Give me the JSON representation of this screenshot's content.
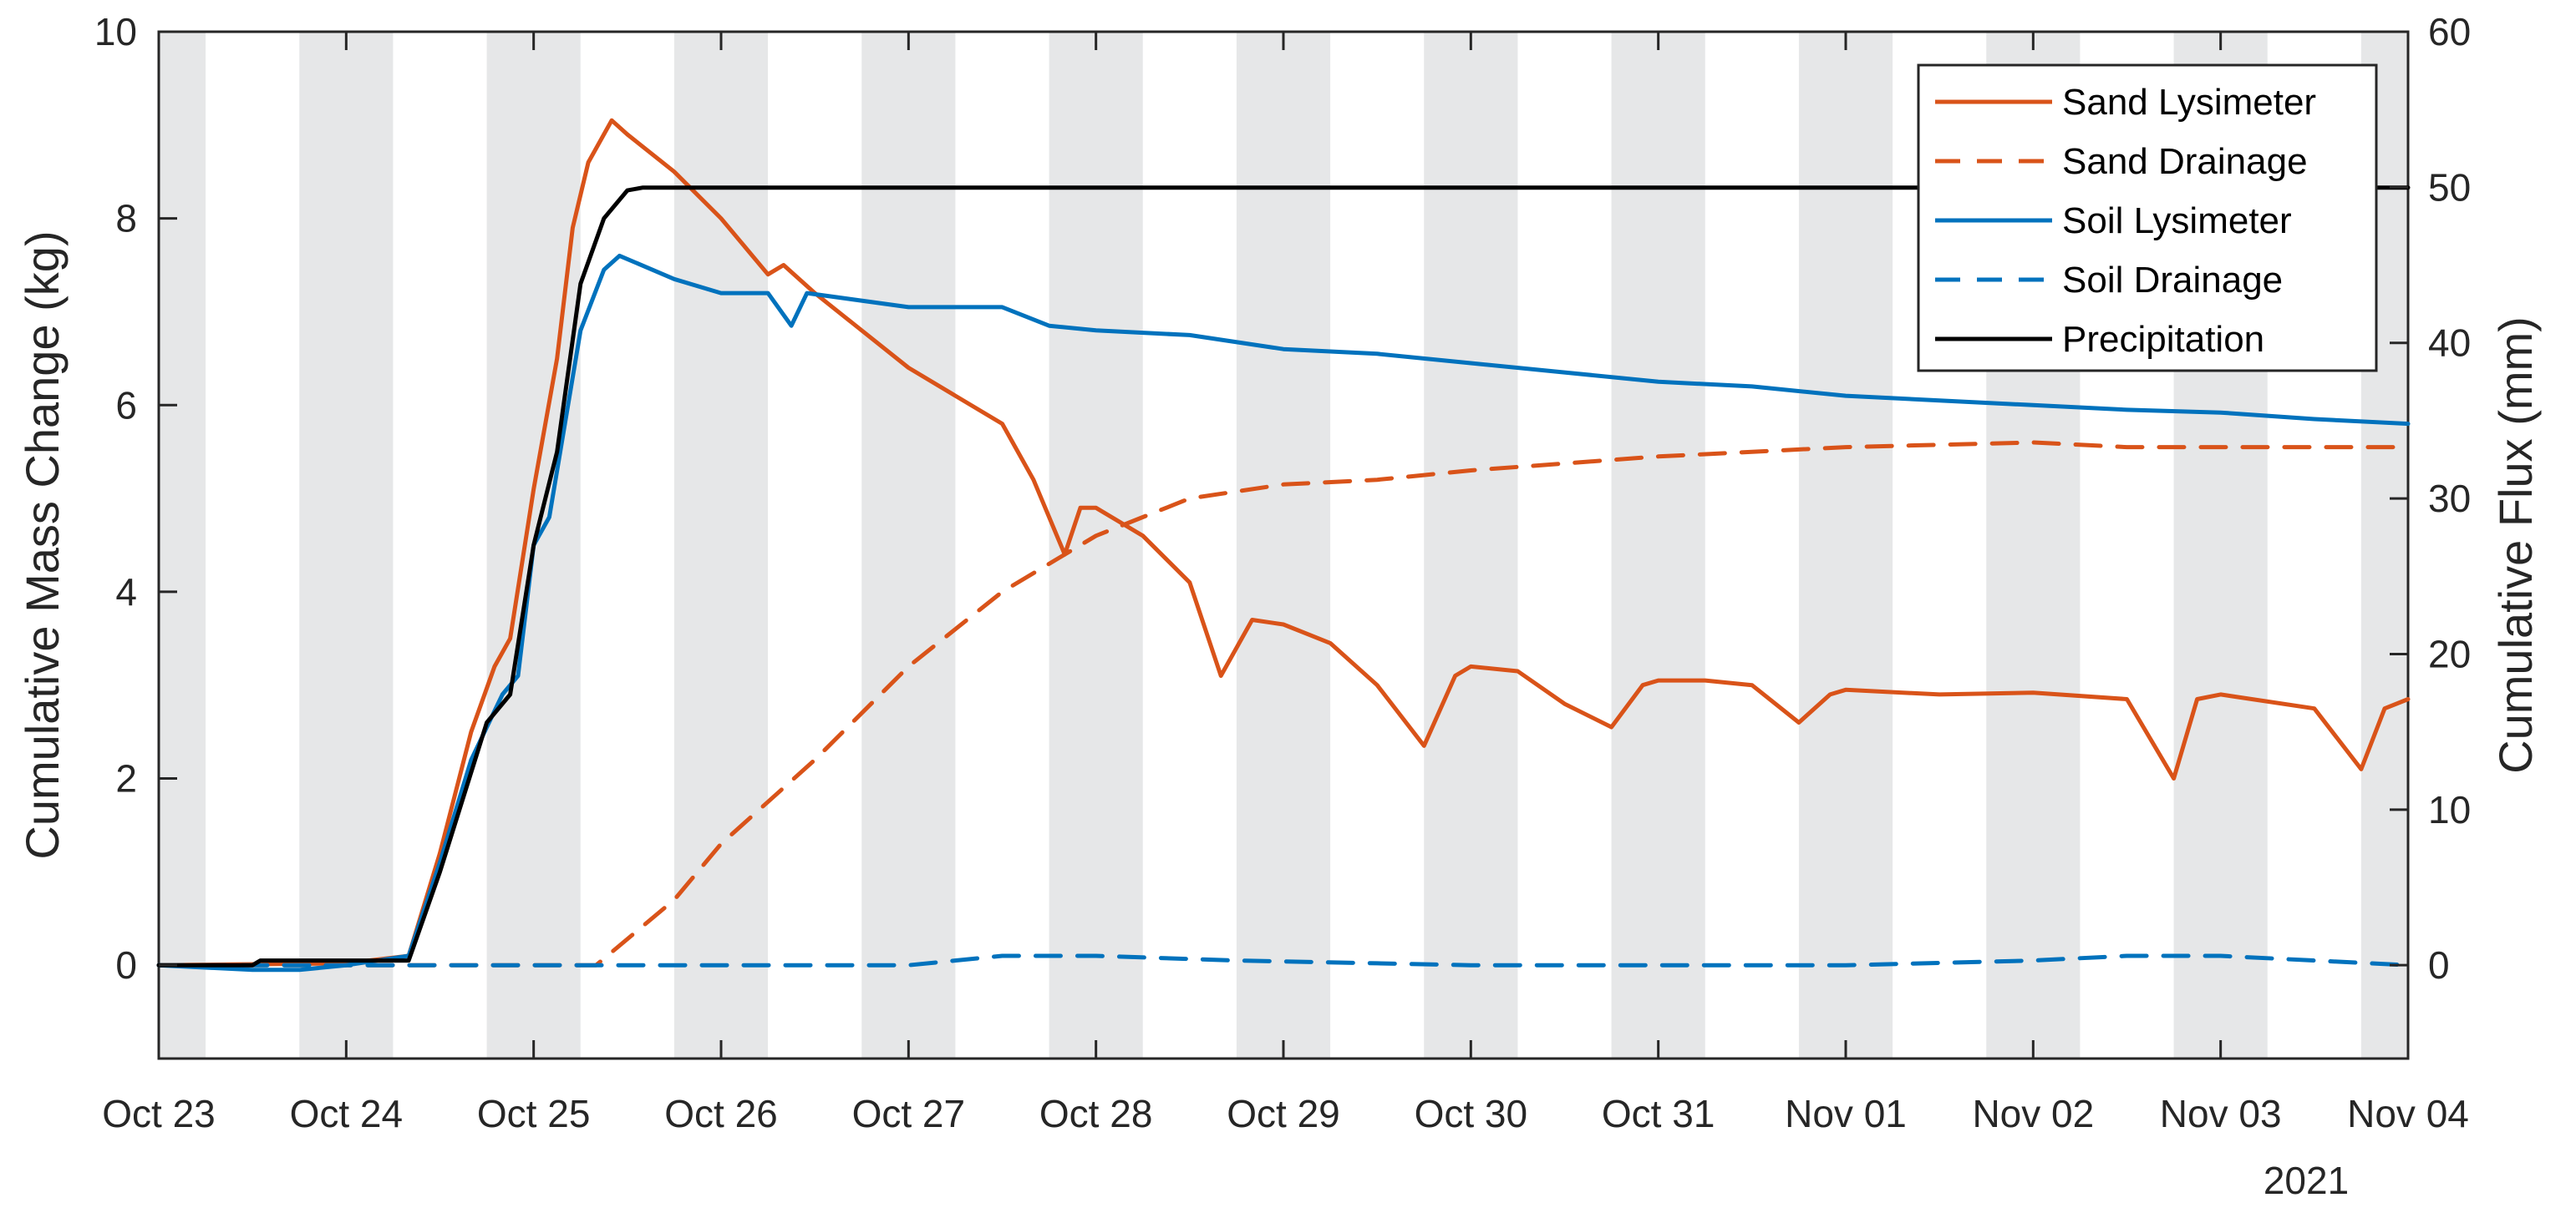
{
  "chart_data": {
    "type": "line",
    "title": "",
    "xlabel": "",
    "ylabel": "Cumulative Mass Change (kg)",
    "y2label": "Cumulative Flux (mm)",
    "x_ticks": [
      "Oct 23",
      "Oct 24",
      "Oct 25",
      "Oct 26",
      "Oct 27",
      "Oct 28",
      "Oct 29",
      "Oct 30",
      "Oct 31",
      "Nov 01",
      "Nov 02",
      "Nov 03",
      "Nov 04"
    ],
    "x_year_label": "2021",
    "xlim": [
      "2021-10-23",
      "2021-11-04"
    ],
    "ylim": [
      -1,
      10
    ],
    "yticks": [
      0,
      2,
      4,
      6,
      8,
      10
    ],
    "y2lim": [
      -6,
      60
    ],
    "y2ticks": [
      0,
      10,
      20,
      30,
      40,
      50,
      60
    ],
    "grid": false,
    "night_shading": true,
    "shading_color": "#e6e7e8",
    "legend_position": "top-right",
    "series": [
      {
        "name": "Sand Lysimeter",
        "axis": "left",
        "color": "#d95319",
        "dash": "solid",
        "points": [
          [
            "2021-10-23 00:00",
            0
          ],
          [
            "2021-10-24 00:00",
            0.02
          ],
          [
            "2021-10-24 08:00",
            0.1
          ],
          [
            "2021-10-24 12:00",
            1.2
          ],
          [
            "2021-10-24 16:00",
            2.5
          ],
          [
            "2021-10-24 19:00",
            3.2
          ],
          [
            "2021-10-24 21:00",
            3.5
          ],
          [
            "2021-10-25 00:00",
            5.1
          ],
          [
            "2021-10-25 03:00",
            6.5
          ],
          [
            "2021-10-25 05:00",
            7.9
          ],
          [
            "2021-10-25 07:00",
            8.6
          ],
          [
            "2021-10-25 10:00",
            9.05
          ],
          [
            "2021-10-25 12:00",
            8.9
          ],
          [
            "2021-10-25 18:00",
            8.5
          ],
          [
            "2021-10-26 00:00",
            8.0
          ],
          [
            "2021-10-26 06:00",
            7.4
          ],
          [
            "2021-10-26 08:00",
            7.5
          ],
          [
            "2021-10-26 12:00",
            7.2
          ],
          [
            "2021-10-26 18:00",
            6.8
          ],
          [
            "2021-10-27 00:00",
            6.4
          ],
          [
            "2021-10-27 06:00",
            6.1
          ],
          [
            "2021-10-27 12:00",
            5.8
          ],
          [
            "2021-10-27 16:00",
            5.2
          ],
          [
            "2021-10-27 20:00",
            4.4
          ],
          [
            "2021-10-27 22:00",
            4.9
          ],
          [
            "2021-10-28 00:00",
            4.9
          ],
          [
            "2021-10-28 06:00",
            4.6
          ],
          [
            "2021-10-28 12:00",
            4.1
          ],
          [
            "2021-10-28 16:00",
            3.1
          ],
          [
            "2021-10-28 20:00",
            3.7
          ],
          [
            "2021-10-29 00:00",
            3.65
          ],
          [
            "2021-10-29 06:00",
            3.45
          ],
          [
            "2021-10-29 12:00",
            3.0
          ],
          [
            "2021-10-29 18:00",
            2.35
          ],
          [
            "2021-10-29 22:00",
            3.1
          ],
          [
            "2021-10-30 00:00",
            3.2
          ],
          [
            "2021-10-30 06:00",
            3.15
          ],
          [
            "2021-10-30 12:00",
            2.8
          ],
          [
            "2021-10-30 18:00",
            2.55
          ],
          [
            "2021-10-30 22:00",
            3.0
          ],
          [
            "2021-10-31 00:00",
            3.05
          ],
          [
            "2021-10-31 06:00",
            3.05
          ],
          [
            "2021-10-31 12:00",
            3.0
          ],
          [
            "2021-10-31 18:00",
            2.6
          ],
          [
            "2021-10-31 22:00",
            2.9
          ],
          [
            "2021-11-01 00:00",
            2.95
          ],
          [
            "2021-11-01 12:00",
            2.9
          ],
          [
            "2021-11-02 00:00",
            2.92
          ],
          [
            "2021-11-02 12:00",
            2.85
          ],
          [
            "2021-11-02 18:00",
            2.0
          ],
          [
            "2021-11-02 21:00",
            2.85
          ],
          [
            "2021-11-03 00:00",
            2.9
          ],
          [
            "2021-11-03 12:00",
            2.75
          ],
          [
            "2021-11-03 18:00",
            2.1
          ],
          [
            "2021-11-03 21:00",
            2.75
          ],
          [
            "2021-11-04 00:00",
            2.85
          ]
        ]
      },
      {
        "name": "Sand Drainage",
        "axis": "left",
        "color": "#d95319",
        "dash": "dashed",
        "points": [
          [
            "2021-10-23 00:00",
            0
          ],
          [
            "2021-10-25 08:00",
            0
          ],
          [
            "2021-10-25 18:00",
            0.7
          ],
          [
            "2021-10-26 00:00",
            1.3
          ],
          [
            "2021-10-26 12:00",
            2.2
          ],
          [
            "2021-10-27 00:00",
            3.2
          ],
          [
            "2021-10-27 12:00",
            4.0
          ],
          [
            "2021-10-28 00:00",
            4.6
          ],
          [
            "2021-10-28 12:00",
            5.0
          ],
          [
            "2021-10-29 00:00",
            5.15
          ],
          [
            "2021-10-29 12:00",
            5.2
          ],
          [
            "2021-10-30 00:00",
            5.3
          ],
          [
            "2021-10-31 00:00",
            5.45
          ],
          [
            "2021-11-01 00:00",
            5.55
          ],
          [
            "2021-11-02 00:00",
            5.6
          ],
          [
            "2021-11-02 12:00",
            5.55
          ],
          [
            "2021-11-03 00:00",
            5.55
          ],
          [
            "2021-11-04 00:00",
            5.55
          ]
        ]
      },
      {
        "name": "Soil Lysimeter",
        "axis": "left",
        "color": "#0072bd",
        "dash": "solid",
        "points": [
          [
            "2021-10-23 00:00",
            0
          ],
          [
            "2021-10-23 12:00",
            -0.05
          ],
          [
            "2021-10-23 18:00",
            -0.05
          ],
          [
            "2021-10-24 00:00",
            0.0
          ],
          [
            "2021-10-24 08:00",
            0.1
          ],
          [
            "2021-10-24 12:00",
            1.1
          ],
          [
            "2021-10-24 16:00",
            2.2
          ],
          [
            "2021-10-24 20:00",
            2.9
          ],
          [
            "2021-10-24 22:00",
            3.1
          ],
          [
            "2021-10-25 00:00",
            4.5
          ],
          [
            "2021-10-25 02:00",
            4.8
          ],
          [
            "2021-10-25 04:00",
            5.8
          ],
          [
            "2021-10-25 06:00",
            6.8
          ],
          [
            "2021-10-25 09:00",
            7.45
          ],
          [
            "2021-10-25 11:00",
            7.6
          ],
          [
            "2021-10-25 18:00",
            7.35
          ],
          [
            "2021-10-26 00:00",
            7.2
          ],
          [
            "2021-10-26 06:00",
            7.2
          ],
          [
            "2021-10-26 09:00",
            6.85
          ],
          [
            "2021-10-26 11:00",
            7.2
          ],
          [
            "2021-10-27 00:00",
            7.05
          ],
          [
            "2021-10-27 12:00",
            7.05
          ],
          [
            "2021-10-27 18:00",
            6.85
          ],
          [
            "2021-10-28 00:00",
            6.8
          ],
          [
            "2021-10-28 12:00",
            6.75
          ],
          [
            "2021-10-29 00:00",
            6.6
          ],
          [
            "2021-10-29 12:00",
            6.55
          ],
          [
            "2021-10-30 00:00",
            6.45
          ],
          [
            "2021-10-30 12:00",
            6.35
          ],
          [
            "2021-10-31 00:00",
            6.25
          ],
          [
            "2021-10-31 12:00",
            6.2
          ],
          [
            "2021-11-01 00:00",
            6.1
          ],
          [
            "2021-11-01 12:00",
            6.05
          ],
          [
            "2021-11-02 00:00",
            6.0
          ],
          [
            "2021-11-02 12:00",
            5.95
          ],
          [
            "2021-11-03 00:00",
            5.92
          ],
          [
            "2021-11-03 12:00",
            5.85
          ],
          [
            "2021-11-04 00:00",
            5.8
          ]
        ]
      },
      {
        "name": "Soil Drainage",
        "axis": "left",
        "color": "#0072bd",
        "dash": "dashed",
        "points": [
          [
            "2021-10-23 00:00",
            0
          ],
          [
            "2021-10-27 00:00",
            0.0
          ],
          [
            "2021-10-27 12:00",
            0.1
          ],
          [
            "2021-10-28 00:00",
            0.1
          ],
          [
            "2021-10-28 18:00",
            0.05
          ],
          [
            "2021-10-29 12:00",
            0.02
          ],
          [
            "2021-10-30 00:00",
            0
          ],
          [
            "2021-11-01 00:00",
            0
          ],
          [
            "2021-11-02 00:00",
            0.05
          ],
          [
            "2021-11-02 12:00",
            0.1
          ],
          [
            "2021-11-03 00:00",
            0.1
          ],
          [
            "2021-11-03 12:00",
            0.05
          ],
          [
            "2021-11-04 00:00",
            0
          ]
        ]
      },
      {
        "name": "Precipitation",
        "axis": "right",
        "color": "#000000",
        "dash": "solid",
        "points": [
          [
            "2021-10-23 00:00",
            0
          ],
          [
            "2021-10-23 12:00",
            0
          ],
          [
            "2021-10-23 13:00",
            0.3
          ],
          [
            "2021-10-24 08:00",
            0.3
          ],
          [
            "2021-10-24 12:00",
            6.0
          ],
          [
            "2021-10-24 18:00",
            15.6
          ],
          [
            "2021-10-24 21:00",
            17.4
          ],
          [
            "2021-10-25 00:00",
            27.0
          ],
          [
            "2021-10-25 03:00",
            33.0
          ],
          [
            "2021-10-25 06:00",
            43.8
          ],
          [
            "2021-10-25 09:00",
            48.0
          ],
          [
            "2021-10-25 12:00",
            49.8
          ],
          [
            "2021-10-25 14:00",
            49.98
          ],
          [
            "2021-11-04 00:00",
            49.98
          ]
        ]
      }
    ]
  }
}
